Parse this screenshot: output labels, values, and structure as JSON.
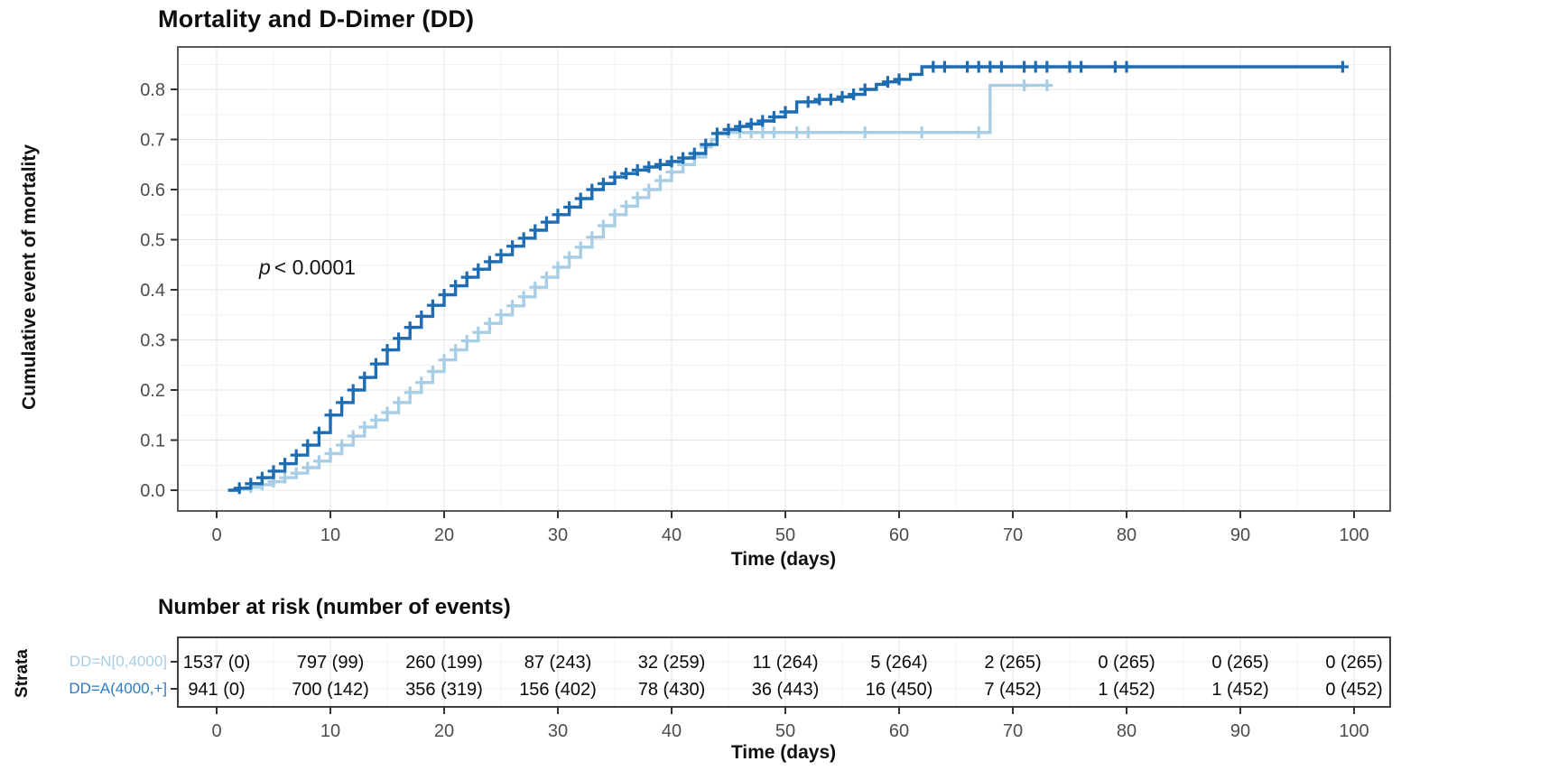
{
  "chart_data": {
    "type": "line",
    "subtype": "kaplan-meier-cumulative-incidence-step-curves-with-censor-marks",
    "title": "Mortality and D-Dimer (DD)",
    "xlabel": "Time (days)",
    "ylabel": "Cumulative event of mortality",
    "pvalue": {
      "italic": "p",
      "rest": "< 0.0001"
    },
    "xlim": [
      -5,
      104
    ],
    "ylim": [
      -0.04,
      0.885
    ],
    "x_ticks": [
      0,
      10,
      20,
      30,
      40,
      50,
      60,
      70,
      80,
      90,
      100
    ],
    "y_ticks": [
      "0.0",
      "0.1",
      "0.2",
      "0.3",
      "0.4",
      "0.5",
      "0.6",
      "0.7",
      "0.8"
    ],
    "grid": "major-and-minor",
    "legend_position": "none",
    "colors": {
      "light_series": "#a8cee6",
      "dark_series": "#1e6db2",
      "grid_major": "#e4e4e4",
      "grid_minor": "#f3f3f3",
      "panel_border": "#595959",
      "tick": "#333333",
      "tick_label": "#4d4d4d"
    },
    "series": [
      {
        "name": "DD=N[0,4000]",
        "color": "#a8cee6",
        "label_color": "#a8cee6",
        "steps": [
          [
            1,
            0
          ],
          [
            2,
            0.002
          ],
          [
            3,
            0.006
          ],
          [
            4,
            0.011
          ],
          [
            5,
            0.017
          ],
          [
            6,
            0.025
          ],
          [
            7,
            0.034
          ],
          [
            8,
            0.045
          ],
          [
            9,
            0.058
          ],
          [
            10,
            0.073
          ],
          [
            11,
            0.09
          ],
          [
            12,
            0.108
          ],
          [
            13,
            0.126
          ],
          [
            14,
            0.14
          ],
          [
            15,
            0.155
          ],
          [
            16,
            0.175
          ],
          [
            17,
            0.195
          ],
          [
            18,
            0.215
          ],
          [
            19,
            0.237
          ],
          [
            20,
            0.26
          ],
          [
            21,
            0.28
          ],
          [
            22,
            0.298
          ],
          [
            23,
            0.315
          ],
          [
            24,
            0.333
          ],
          [
            25,
            0.35
          ],
          [
            26,
            0.368
          ],
          [
            27,
            0.386
          ],
          [
            28,
            0.405
          ],
          [
            29,
            0.425
          ],
          [
            30,
            0.445
          ],
          [
            31,
            0.465
          ],
          [
            32,
            0.485
          ],
          [
            33,
            0.505
          ],
          [
            34,
            0.528
          ],
          [
            35,
            0.55
          ],
          [
            36,
            0.567
          ],
          [
            37,
            0.584
          ],
          [
            38,
            0.6
          ],
          [
            39,
            0.618
          ],
          [
            40,
            0.635
          ],
          [
            41,
            0.65
          ],
          [
            42,
            0.665
          ],
          [
            43,
            0.685
          ],
          [
            43.5,
            0.7
          ],
          [
            44,
            0.714
          ],
          [
            68,
            0.808
          ],
          [
            73,
            0.808
          ]
        ],
        "censor_times": [
          3,
          4,
          5,
          6,
          7,
          8,
          9,
          10,
          11,
          12,
          13,
          14,
          15,
          16,
          17,
          18,
          19,
          20,
          21,
          22,
          23,
          24,
          25,
          26,
          27,
          28,
          29,
          30,
          31,
          32,
          33,
          34,
          35,
          36,
          37,
          38,
          39,
          40,
          41,
          42,
          43,
          45,
          46,
          47,
          48,
          49,
          51,
          52,
          57,
          62,
          67,
          71,
          73
        ]
      },
      {
        "name": "DD=A(4000,+]",
        "color": "#1e6db2",
        "label_color": "#2e7bbf",
        "steps": [
          [
            1,
            0
          ],
          [
            2,
            0.004
          ],
          [
            3,
            0.013
          ],
          [
            4,
            0.025
          ],
          [
            5,
            0.038
          ],
          [
            6,
            0.053
          ],
          [
            7,
            0.07
          ],
          [
            8,
            0.09
          ],
          [
            9,
            0.115
          ],
          [
            10,
            0.15
          ],
          [
            11,
            0.175
          ],
          [
            12,
            0.2
          ],
          [
            13,
            0.225
          ],
          [
            14,
            0.252
          ],
          [
            15,
            0.28
          ],
          [
            16,
            0.303
          ],
          [
            17,
            0.325
          ],
          [
            18,
            0.347
          ],
          [
            19,
            0.369
          ],
          [
            20,
            0.39
          ],
          [
            21,
            0.408
          ],
          [
            22,
            0.425
          ],
          [
            23,
            0.441
          ],
          [
            24,
            0.456
          ],
          [
            25,
            0.47
          ],
          [
            26,
            0.487
          ],
          [
            27,
            0.503
          ],
          [
            28,
            0.519
          ],
          [
            29,
            0.535
          ],
          [
            30,
            0.55
          ],
          [
            31,
            0.565
          ],
          [
            32,
            0.582
          ],
          [
            33,
            0.6
          ],
          [
            34,
            0.612
          ],
          [
            35,
            0.625
          ],
          [
            36,
            0.632
          ],
          [
            37,
            0.639
          ],
          [
            38,
            0.645
          ],
          [
            39,
            0.65
          ],
          [
            40,
            0.656
          ],
          [
            41,
            0.663
          ],
          [
            42,
            0.672
          ],
          [
            43,
            0.69
          ],
          [
            44,
            0.712
          ],
          [
            45,
            0.72
          ],
          [
            46,
            0.726
          ],
          [
            47,
            0.731
          ],
          [
            48,
            0.737
          ],
          [
            49,
            0.745
          ],
          [
            50,
            0.755
          ],
          [
            51,
            0.775
          ],
          [
            53,
            0.78
          ],
          [
            55,
            0.785
          ],
          [
            56,
            0.79
          ],
          [
            57,
            0.8
          ],
          [
            58,
            0.81
          ],
          [
            59,
            0.815
          ],
          [
            60,
            0.82
          ],
          [
            61,
            0.83
          ],
          [
            62,
            0.845
          ],
          [
            99,
            0.845
          ]
        ],
        "censor_times": [
          2,
          3,
          4,
          5,
          6,
          7,
          8,
          9,
          10,
          11,
          12,
          13,
          14,
          15,
          16,
          17,
          18,
          19,
          20,
          21,
          22,
          23,
          24,
          25,
          26,
          27,
          28,
          29,
          30,
          31,
          32,
          33,
          34,
          35,
          36,
          37,
          38,
          39,
          40,
          41,
          42,
          43,
          44,
          45,
          46,
          47,
          48,
          49,
          50,
          52,
          53,
          54,
          55,
          56,
          57,
          59,
          60,
          63,
          64,
          66,
          67,
          68,
          69,
          71,
          72,
          73,
          75,
          76,
          79,
          80,
          99
        ]
      }
    ]
  },
  "risk_table": {
    "title": "Number at risk (number of events)",
    "strata_axis_label": "Strata",
    "xlabel": "Time (days)",
    "times": [
      0,
      10,
      20,
      30,
      40,
      50,
      60,
      70,
      80,
      90,
      100
    ],
    "rows": [
      {
        "label": "DD=N[0,4000]",
        "color": "#a8cee6",
        "values": [
          "1537 (0)",
          "797 (99)",
          "260 (199)",
          "87 (243)",
          "32 (259)",
          "11 (264)",
          "5 (264)",
          "2 (265)",
          "0 (265)",
          "0 (265)",
          "0 (265)"
        ]
      },
      {
        "label": "DD=A(4000,+]",
        "color": "#2e7bbf",
        "values": [
          "941 (0)",
          "700 (142)",
          "356 (319)",
          "156 (402)",
          "78 (430)",
          "36 (443)",
          "16 (450)",
          "7 (452)",
          "1 (452)",
          "1 (452)",
          "0 (452)"
        ]
      }
    ]
  }
}
